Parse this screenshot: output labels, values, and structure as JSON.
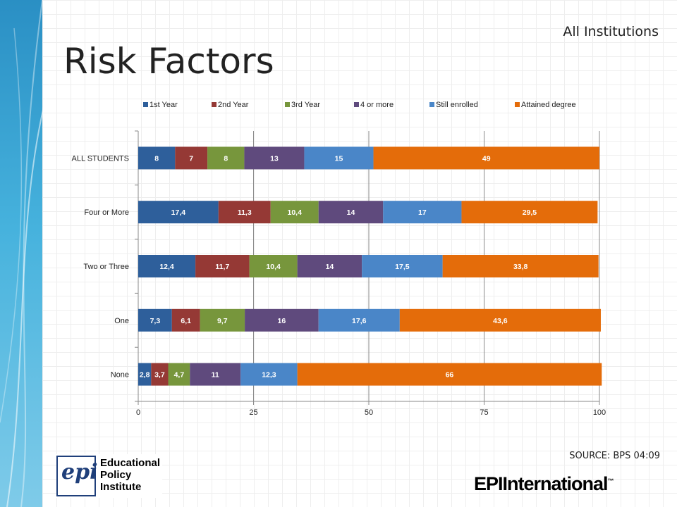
{
  "slide": {
    "title": "Risk Factors",
    "subtitle": "All Institutions",
    "source": "SOURCE: BPS 04:09"
  },
  "logos": {
    "epi_mark": "epi",
    "epi_line1": "Educational",
    "epi_line2": "Policy",
    "epi_line3": "Institute",
    "brand": "EPIInternational",
    "brand_tm": "™"
  },
  "chart_data": {
    "type": "bar",
    "orientation": "horizontal",
    "stacked": true,
    "categories": [
      "ALL STUDENTS",
      "Four or More",
      "Two or Three",
      "One",
      "None"
    ],
    "series": [
      {
        "name": "1st Year",
        "color": "#2e5f9b",
        "values": [
          8,
          17.4,
          12.4,
          7.3,
          2.8
        ],
        "labels": [
          "8",
          "17,4",
          "12,4",
          "7,3",
          "2,8"
        ]
      },
      {
        "name": "2nd Year",
        "color": "#953935",
        "values": [
          7,
          11.3,
          11.7,
          6.1,
          3.7
        ],
        "labels": [
          "7",
          "11,3",
          "11,7",
          "6,1",
          "3,7"
        ]
      },
      {
        "name": "3rd Year",
        "color": "#77963c",
        "values": [
          8,
          10.4,
          10.4,
          9.7,
          4.7
        ],
        "labels": [
          "8",
          "10,4",
          "10,4",
          "9,7",
          "4,7"
        ]
      },
      {
        "name": "4 or more",
        "color": "#5f4a7d",
        "values": [
          13,
          14,
          14,
          16,
          11
        ],
        "labels": [
          "13",
          "14",
          "14",
          "16",
          "11"
        ]
      },
      {
        "name": "Still enrolled",
        "color": "#4a86c8",
        "values": [
          15,
          17,
          17.5,
          17.6,
          12.3
        ],
        "labels": [
          "15",
          "17",
          "17,5",
          "17,6",
          "12,3"
        ]
      },
      {
        "name": "Attained degree",
        "color": "#e46c0a",
        "values": [
          49,
          29.5,
          33.8,
          43.6,
          66
        ],
        "labels": [
          "49",
          "29,5",
          "33,8",
          "43,6",
          "66"
        ]
      }
    ],
    "xlim": [
      0,
      100
    ],
    "xticks": [
      "0",
      "25",
      "50",
      "75",
      "100"
    ],
    "grid": true,
    "legend": "top"
  }
}
